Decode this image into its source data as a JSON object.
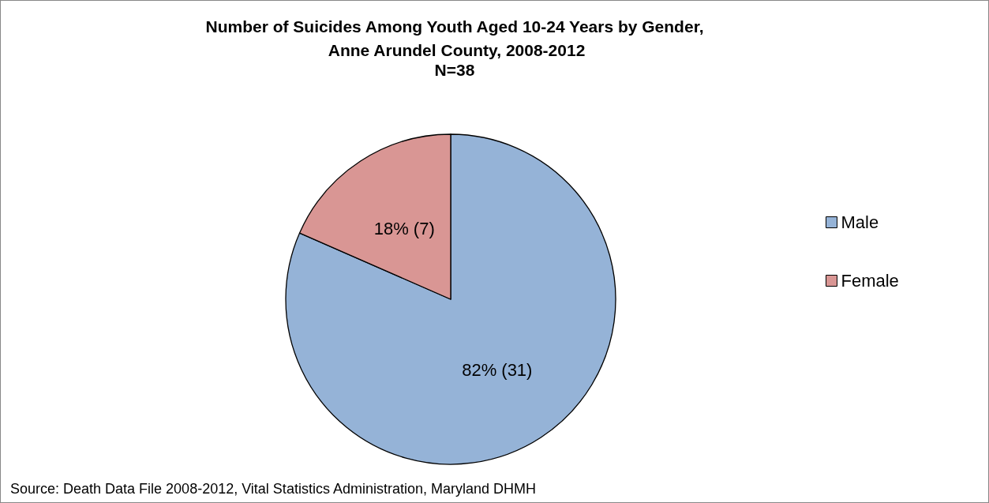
{
  "chart_data": {
    "type": "pie",
    "title": "Number of Suicides Among Youth Aged 10-24 Years by Gender, Anne Arundel County, 2008-2012",
    "subtitle": "N=38",
    "categories": [
      "Male",
      "Female"
    ],
    "values": [
      31,
      7
    ],
    "colors": [
      "#95b3d7",
      "#d99694"
    ],
    "value_labels": [
      "82% (31)",
      "18% (7)"
    ],
    "legend": "right",
    "annotations": [
      "Source: Death Data File 2008-2012, Vital Statistics Administration, Maryland DHMH"
    ]
  }
}
